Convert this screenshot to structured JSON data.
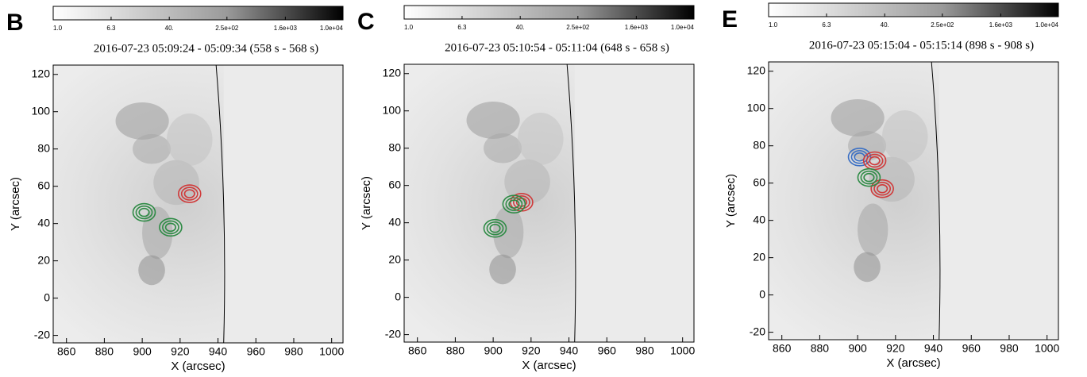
{
  "chart_data": [
    {
      "type": "image",
      "label": "B",
      "title": "2016-07-23 05:09:24 - 05:09:34  (558 s - 568 s)",
      "xlabel": "X (arcsec)",
      "ylabel": "Y (arcsec)",
      "xlim": [
        853,
        1006
      ],
      "ylim": [
        -24,
        125
      ],
      "xticks": [
        860,
        880,
        900,
        920,
        940,
        960,
        980,
        1000
      ],
      "yticks": [
        -20,
        0,
        20,
        40,
        60,
        80,
        100,
        120
      ],
      "colorbar": {
        "lim": [
          1,
          10000
        ],
        "log": true,
        "ticks": [
          {
            "value": 1,
            "label": "1.0"
          },
          {
            "value": 6.3,
            "label": "6.3"
          },
          {
            "value": 40,
            "label": "40."
          },
          {
            "value": 250,
            "label": "2.5e+02"
          },
          {
            "value": 1600,
            "label": "1.6e+03"
          },
          {
            "value": 10000,
            "label": "1.0e+04"
          }
        ]
      },
      "series": [
        {
          "color": "#d03a3a",
          "x": [
            925
          ],
          "y": [
            56
          ]
        },
        {
          "color": "#2e8b45",
          "x": [
            901,
            915
          ],
          "y": [
            46,
            38
          ]
        }
      ]
    },
    {
      "type": "image",
      "label": "C",
      "title": "2016-07-23 05:10:54 - 05:11:04  (648 s - 658 s)",
      "xlabel": "X (arcsec)",
      "ylabel": "Y (arcsec)",
      "xlim": [
        853,
        1006
      ],
      "ylim": [
        -24,
        125
      ],
      "xticks": [
        860,
        880,
        900,
        920,
        940,
        960,
        980,
        1000
      ],
      "yticks": [
        -20,
        0,
        20,
        40,
        60,
        80,
        100,
        120
      ],
      "colorbar": {
        "lim": [
          1,
          10000
        ],
        "log": true,
        "ticks": [
          {
            "value": 1,
            "label": "1.0"
          },
          {
            "value": 6.3,
            "label": "6.3"
          },
          {
            "value": 40,
            "label": "40."
          },
          {
            "value": 250,
            "label": "2.5e+02"
          },
          {
            "value": 1600,
            "label": "1.6e+03"
          },
          {
            "value": 10000,
            "label": "1.0e+04"
          }
        ]
      },
      "series": [
        {
          "color": "#d03a3a",
          "x": [
            915
          ],
          "y": [
            51
          ]
        },
        {
          "color": "#2e8b45",
          "x": [
            911,
            901
          ],
          "y": [
            50,
            37
          ]
        }
      ]
    },
    {
      "type": "image",
      "label": "E",
      "title": "2016-07-23 05:15:04 - 05:15:14  (898 s - 908 s)",
      "xlabel": "X (arcsec)",
      "ylabel": "Y (arcsec)",
      "xlim": [
        853,
        1006
      ],
      "ylim": [
        -24,
        125
      ],
      "xticks": [
        860,
        880,
        900,
        920,
        940,
        960,
        980,
        1000
      ],
      "yticks": [
        -20,
        0,
        20,
        40,
        60,
        80,
        100,
        120
      ],
      "colorbar": {
        "lim": [
          1,
          10000
        ],
        "log": true,
        "ticks": [
          {
            "value": 1,
            "label": "1.0"
          },
          {
            "value": 6.3,
            "label": "6.3"
          },
          {
            "value": 40,
            "label": "40."
          },
          {
            "value": 250,
            "label": "2.5e+02"
          },
          {
            "value": 1600,
            "label": "1.6e+03"
          },
          {
            "value": 10000,
            "label": "1.0e+04"
          }
        ]
      },
      "series": [
        {
          "color": "#3a6fc4",
          "x": [
            901
          ],
          "y": [
            74
          ]
        },
        {
          "color": "#d03a3a",
          "x": [
            909,
            913
          ],
          "y": [
            72,
            57
          ]
        },
        {
          "color": "#2e8b45",
          "x": [
            906
          ],
          "y": [
            63
          ]
        }
      ]
    }
  ]
}
